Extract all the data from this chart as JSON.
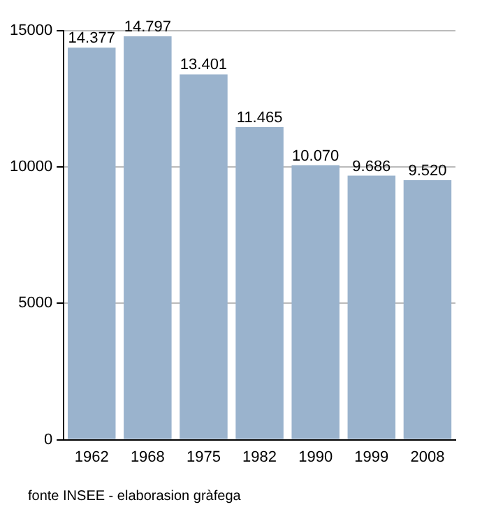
{
  "chart_data": {
    "type": "bar",
    "categories": [
      "1962",
      "1968",
      "1975",
      "1982",
      "1990",
      "1999",
      "2008"
    ],
    "values": [
      14377,
      14797,
      13401,
      11465,
      10070,
      9686,
      9520
    ],
    "value_labels": [
      "14.377",
      "14.797",
      "13.401",
      "11.465",
      "10.070",
      "9.686",
      "9.520"
    ],
    "color": "#9ab3cd",
    "ylim": [
      0,
      15000
    ],
    "yticks": [
      0,
      5000,
      10000,
      15000
    ],
    "grid": "y",
    "annotations": [
      "fonte INSEE - elaborasion gràfega"
    ]
  }
}
